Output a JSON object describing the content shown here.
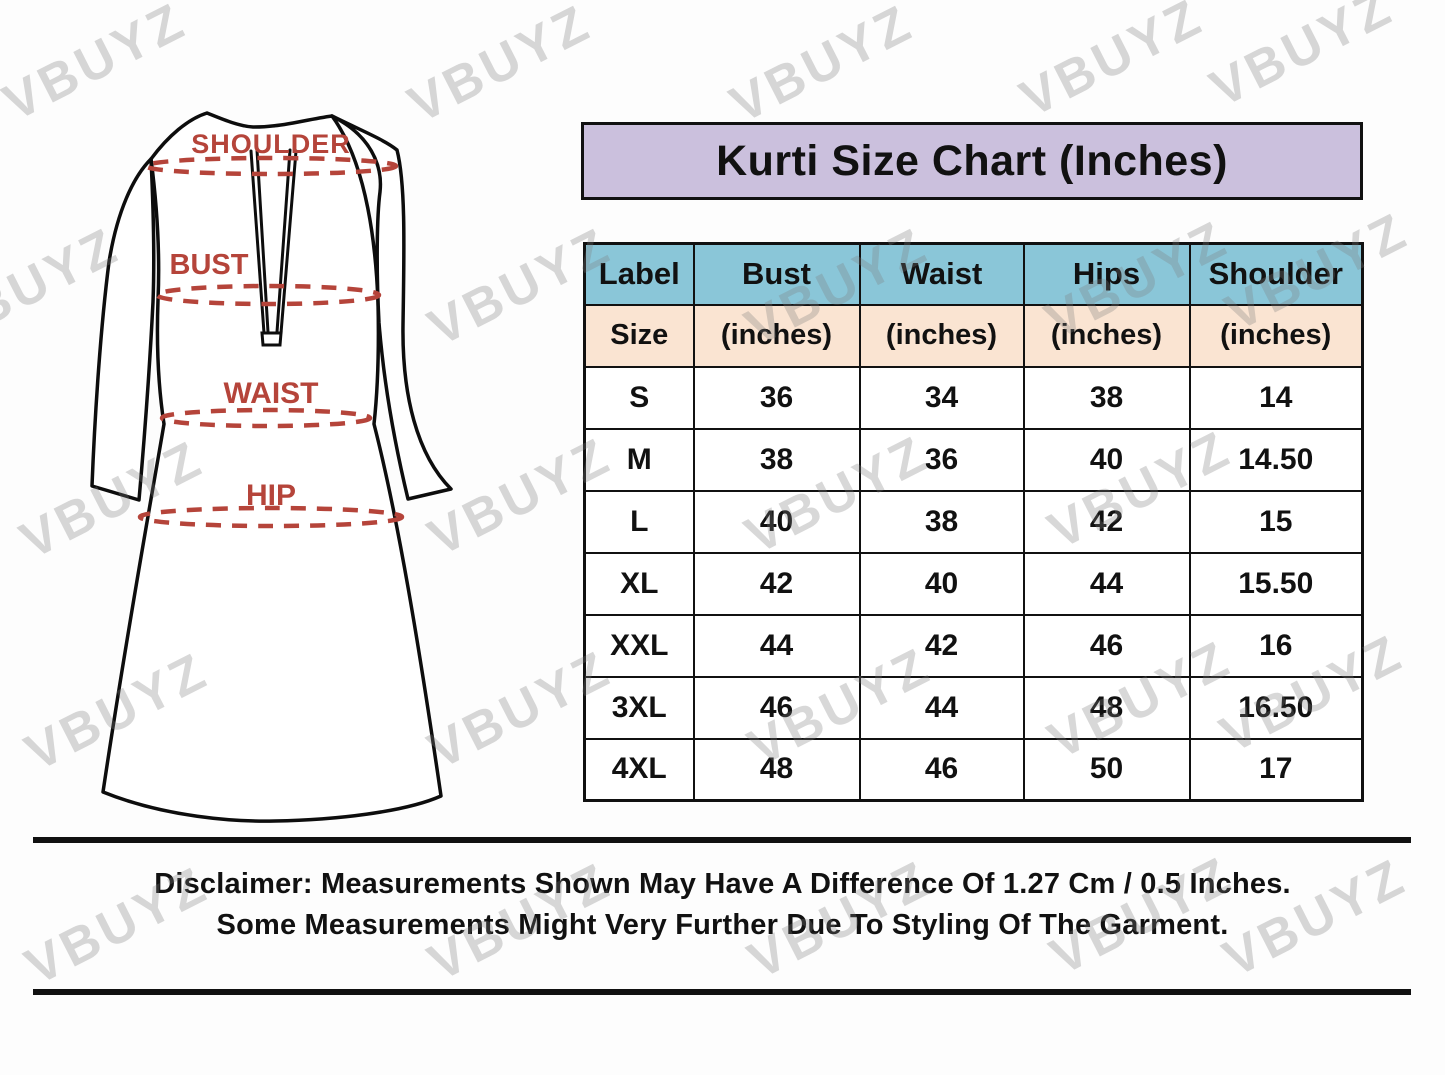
{
  "watermark": {
    "text": "VBUYZ"
  },
  "title": "Kurti Size Chart (Inches)",
  "diagram": {
    "labels": {
      "shoulder": "SHOULDER",
      "bust": "BUST",
      "waist": "WAIST",
      "hip": "HIP"
    }
  },
  "table": {
    "header": [
      "Label",
      "Bust",
      "Waist",
      "Hips",
      "Shoulder"
    ],
    "subheader": [
      "Size",
      "(inches)",
      "(inches)",
      "(inches)",
      "(inches)"
    ],
    "rows": [
      [
        "S",
        "36",
        "34",
        "38",
        "14"
      ],
      [
        "M",
        "38",
        "36",
        "40",
        "14.50"
      ],
      [
        "L",
        "40",
        "38",
        "42",
        "15"
      ],
      [
        "XL",
        "42",
        "40",
        "44",
        "15.50"
      ],
      [
        "XXL",
        "44",
        "42",
        "46",
        "16"
      ],
      [
        "3XL",
        "46",
        "44",
        "48",
        "16.50"
      ],
      [
        "4XL",
        "48",
        "46",
        "50",
        "17"
      ]
    ]
  },
  "chart_data": {
    "type": "table",
    "title": "Kurti Size Chart (Inches)",
    "columns": [
      "Label/Size",
      "Bust (inches)",
      "Waist (inches)",
      "Hips (inches)",
      "Shoulder (inches)"
    ],
    "rows": [
      [
        "S",
        36,
        34,
        38,
        14
      ],
      [
        "M",
        38,
        36,
        40,
        14.5
      ],
      [
        "L",
        40,
        38,
        42,
        15
      ],
      [
        "XL",
        42,
        40,
        44,
        15.5
      ],
      [
        "XXL",
        44,
        42,
        46,
        16
      ],
      [
        "3XL",
        46,
        44,
        48,
        16.5
      ],
      [
        "4XL",
        48,
        46,
        50,
        17
      ]
    ]
  },
  "disclaimer": {
    "line1": "Disclaimer: Measurements Shown May Have A Difference Of 1.27 Cm / 0.5 Inches.",
    "line2": "Some Measurements Might Very Further Due To Styling Of The Garment."
  },
  "colors": {
    "title_bg": "#cbc0dd",
    "header_bg": "#8ac6d8",
    "subheader_bg": "#fae4d2",
    "measure_red": "#b5443a",
    "line_black": "#111111"
  }
}
